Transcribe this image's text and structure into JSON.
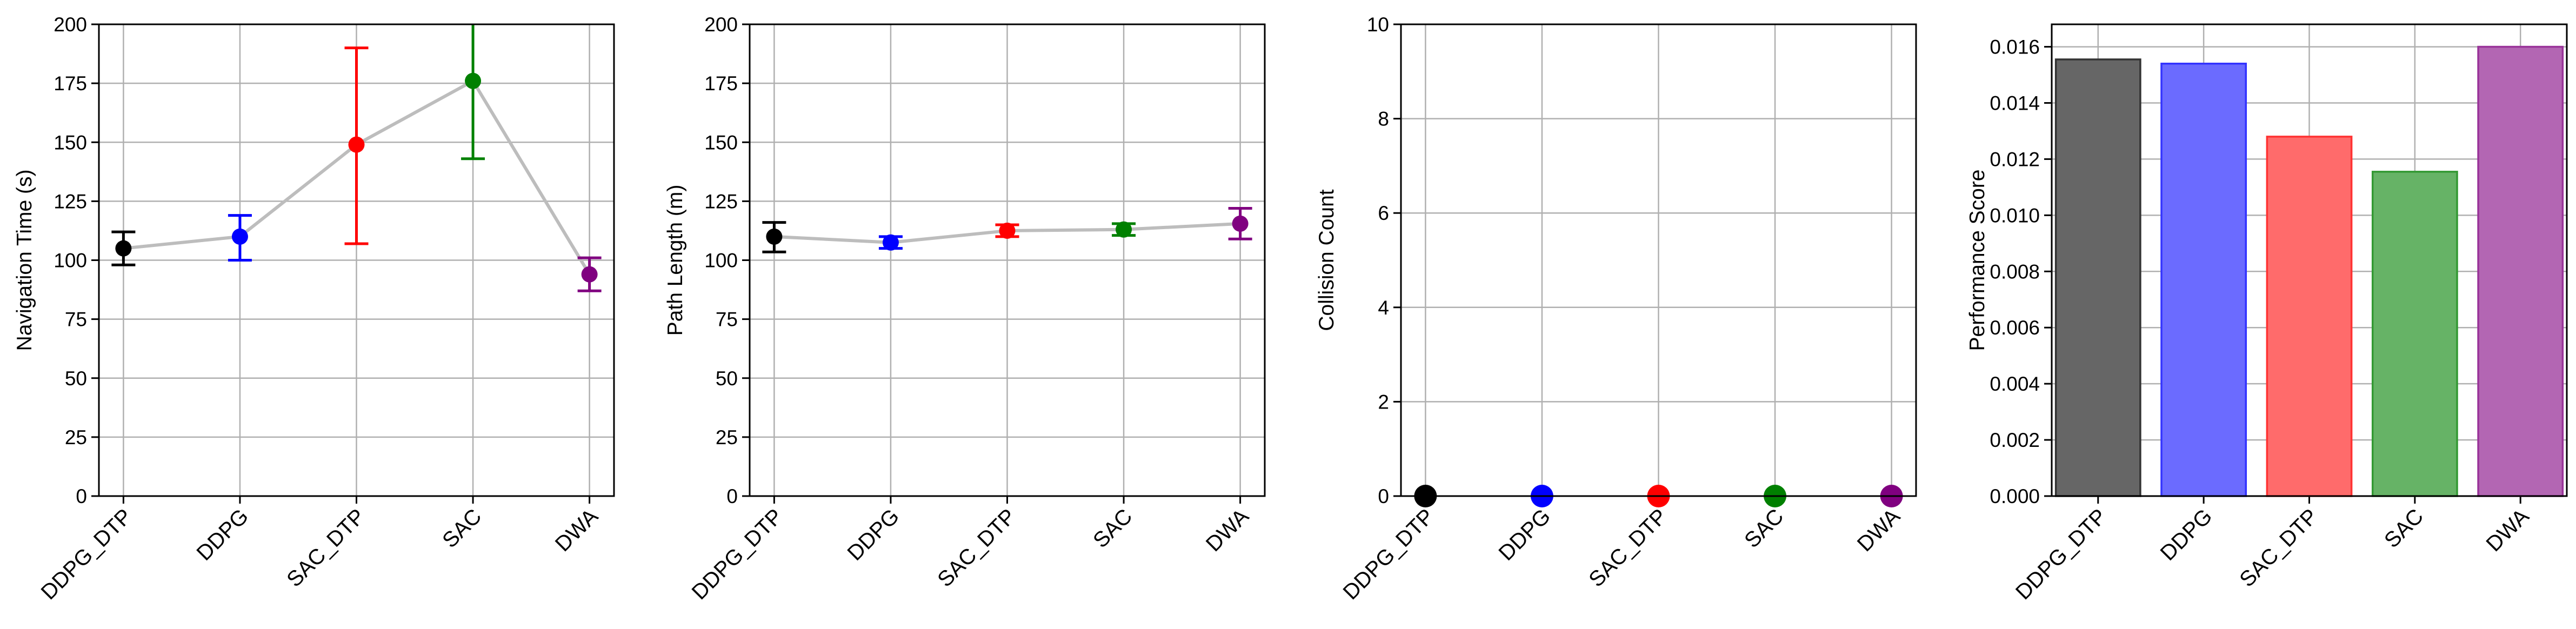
{
  "chart_data": [
    {
      "type": "line",
      "categories": [
        "DDPG_DTP",
        "DDPG",
        "SAC_DTP",
        "SAC",
        "DWA"
      ],
      "ylabel": "Navigation Time (s)",
      "ylim": [
        0,
        200
      ],
      "yticks": [
        0,
        25,
        50,
        75,
        100,
        125,
        150,
        175,
        200
      ],
      "grid": true,
      "series": [
        {
          "values": [
            105,
            110,
            149,
            176,
            94
          ],
          "err_low": [
            98,
            100,
            107,
            143,
            87
          ],
          "err_high": [
            112,
            119,
            190,
            210,
            101
          ],
          "colors": [
            "#000000",
            "#0000ff",
            "#ff0000",
            "#008000",
            "#800080"
          ]
        }
      ]
    },
    {
      "type": "line",
      "categories": [
        "DDPG_DTP",
        "DDPG",
        "SAC_DTP",
        "SAC",
        "DWA"
      ],
      "ylabel": "Path Length (m)",
      "ylim": [
        0,
        200
      ],
      "yticks": [
        0,
        25,
        50,
        75,
        100,
        125,
        150,
        175,
        200
      ],
      "grid": true,
      "series": [
        {
          "values": [
            110,
            107.5,
            112.5,
            113,
            115.5
          ],
          "err_low": [
            103.5,
            105,
            110,
            110.5,
            109
          ],
          "err_high": [
            116,
            110,
            115,
            115.5,
            122
          ],
          "colors": [
            "#000000",
            "#0000ff",
            "#ff0000",
            "#008000",
            "#800080"
          ]
        }
      ]
    },
    {
      "type": "scatter",
      "categories": [
        "DDPG_DTP",
        "DDPG",
        "SAC_DTP",
        "SAC",
        "DWA"
      ],
      "ylabel": "Collision Count",
      "ylim": [
        0,
        10
      ],
      "yticks": [
        0,
        2,
        4,
        6,
        8,
        10
      ],
      "grid": true,
      "series": [
        {
          "values": [
            0,
            0,
            0,
            0,
            0
          ],
          "colors": [
            "#000000",
            "#0000ff",
            "#ff0000",
            "#008000",
            "#800080"
          ]
        }
      ]
    },
    {
      "type": "bar",
      "categories": [
        "DDPG_DTP",
        "DDPG",
        "SAC_DTP",
        "SAC",
        "DWA"
      ],
      "ylabel": "Performance Score",
      "ylim": [
        0,
        0.0168
      ],
      "yticks": [
        "0.000",
        "0.002",
        "0.004",
        "0.006",
        "0.008",
        "0.010",
        "0.012",
        "0.014",
        "0.016"
      ],
      "grid": true,
      "series": [
        {
          "values": [
            0.01555,
            0.0154,
            0.0128,
            0.01155,
            0.016
          ],
          "colors": [
            "#666666",
            "#6b6bff",
            "#ff6b6b",
            "#66b366",
            "#b366b3"
          ],
          "edge_colors": [
            "#333333",
            "#3333ff",
            "#ff3333",
            "#339933",
            "#993399"
          ]
        }
      ]
    }
  ]
}
